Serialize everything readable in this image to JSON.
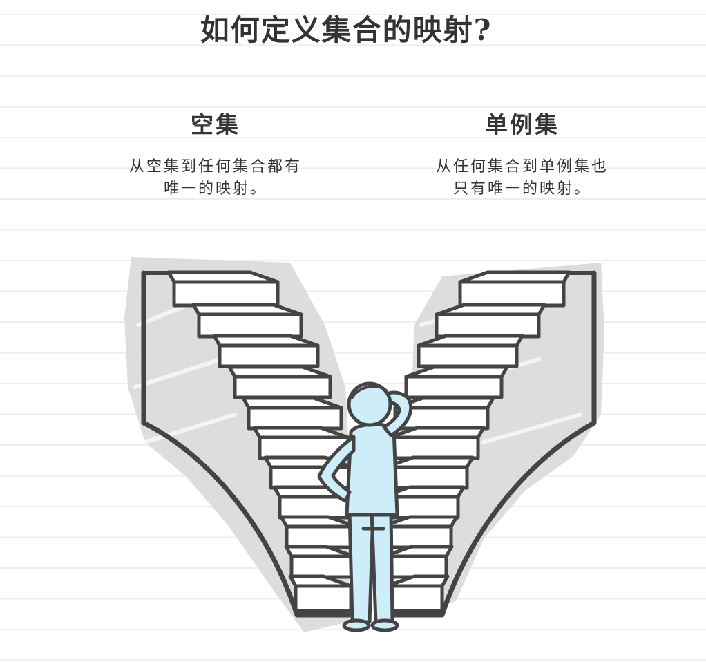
{
  "title": "如何定义集合的映射?",
  "columns": [
    {
      "heading": "空集",
      "description_lines": [
        "从空集到任何集合都有",
        "唯一的映射。"
      ]
    },
    {
      "heading": "单例集",
      "description_lines": [
        "从任何集合到单例集也",
        "只有唯一的映射。"
      ]
    }
  ],
  "illustration": {
    "icon": "person-before-two-staircases-illustration",
    "colors": {
      "ink": "#444444",
      "stair_fill": "#ffffff",
      "shading": "#d9d9d9",
      "person_fill": "#cdeef8"
    }
  }
}
